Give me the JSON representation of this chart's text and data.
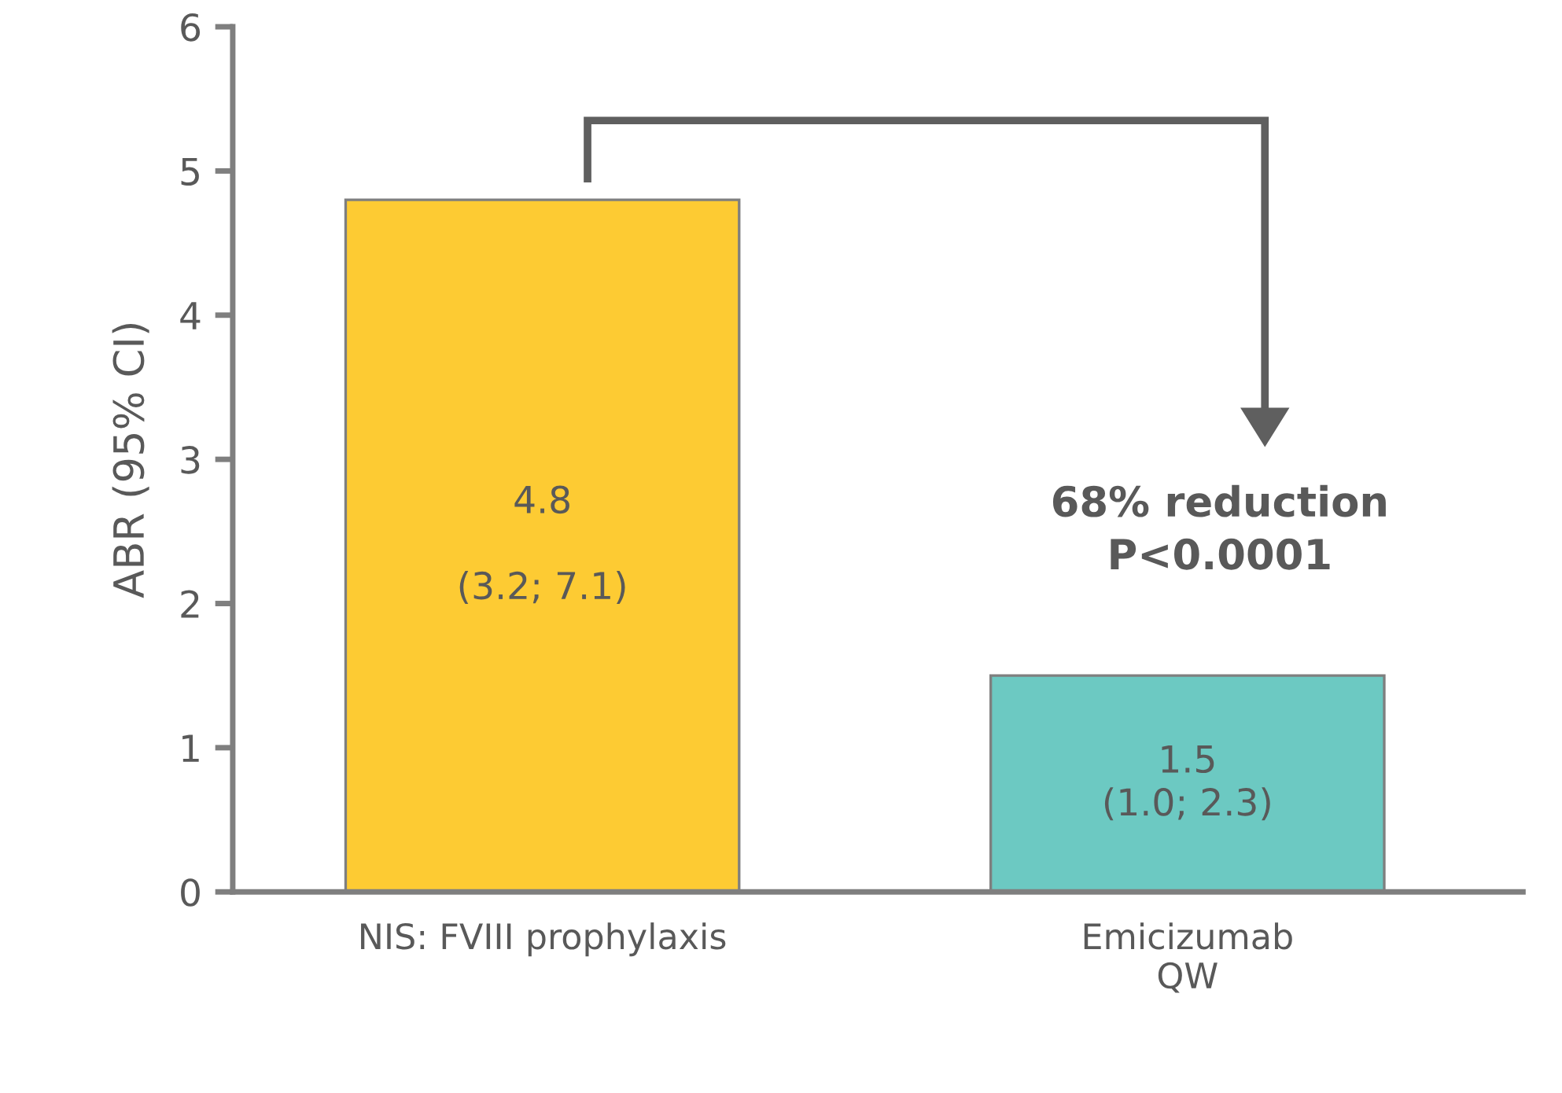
{
  "chart_data": {
    "type": "bar",
    "ylabel": "ABR (95% CI)",
    "categories": [
      "NIS: FVIII prophylaxis",
      "Emicizumab\nQW"
    ],
    "values": [
      4.8,
      1.5
    ],
    "colors": [
      "#fdcb33",
      "#6cc9c2"
    ],
    "value_labels": [
      "4.8\n\n(3.2; 7.1)",
      "1.5\n(1.0; 2.3)"
    ],
    "ylim": [
      0,
      6
    ],
    "yticks": [
      0,
      1,
      2,
      3,
      4,
      5,
      6
    ],
    "annotations": [
      "68% reduction\nP<0.0001"
    ],
    "grid": false,
    "legend": false
  }
}
